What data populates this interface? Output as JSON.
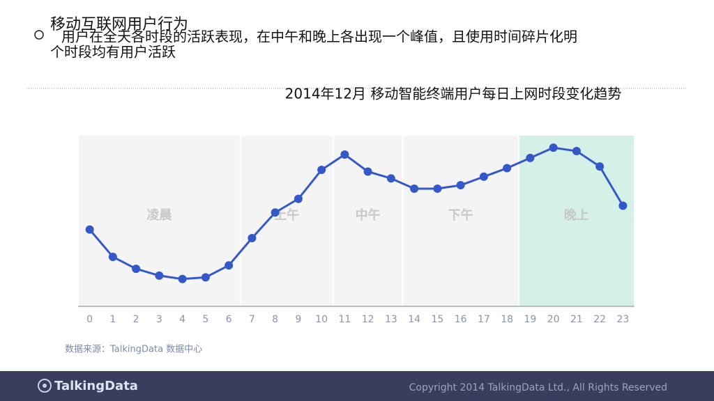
{
  "header": {
    "title": "移动互联网用户行为",
    "bullet_lines": [
      "用户在全天各时段的活跃表现，在中午和晚上各出现一个峰值，且使用时间碎片化明",
      "个时段均有用户活跃"
    ]
  },
  "chart_data": {
    "type": "line",
    "title": "2014年12月 移动智能终端用户每日上网时段变化趋势",
    "x": [
      0,
      1,
      2,
      3,
      4,
      5,
      6,
      7,
      8,
      9,
      10,
      11,
      12,
      13,
      14,
      15,
      16,
      17,
      18,
      19,
      20,
      21,
      22,
      23
    ],
    "xlim": [
      -0.5,
      23.5
    ],
    "xticks": [
      0,
      1,
      2,
      3,
      4,
      5,
      6,
      7,
      8,
      9,
      10,
      11,
      12,
      13,
      14,
      15,
      16,
      17,
      18,
      19,
      20,
      21,
      22,
      23
    ],
    "ylim": [
      0,
      100
    ],
    "series": [
      {
        "color": "#3558c8",
        "values": [
          45,
          29,
          22,
          18,
          16,
          17,
          24,
          40,
          55,
          63,
          80,
          89,
          79,
          75,
          69,
          69,
          71,
          76,
          81,
          87,
          93,
          91,
          82,
          59
        ]
      }
    ],
    "periods": [
      {
        "label": "凌晨",
        "start": 0,
        "end": 6,
        "color": "#f4f4f4"
      },
      {
        "label": "上午",
        "start": 7,
        "end": 10,
        "color": "#f4f4f4"
      },
      {
        "label": "中午",
        "start": 11,
        "end": 13,
        "color": "#f4f4f4"
      },
      {
        "label": "下午",
        "start": 14,
        "end": 18,
        "color": "#f4f4f4"
      },
      {
        "label": "晚上",
        "start": 19,
        "end": 23,
        "color": "#d5f0e6"
      }
    ],
    "source": "数据来源：TalkingData 数据中心"
  },
  "footer": {
    "logo": "TalkingData",
    "copyright": "Copyright 2014 TalkingData Ltd., All Rights Reserved"
  }
}
